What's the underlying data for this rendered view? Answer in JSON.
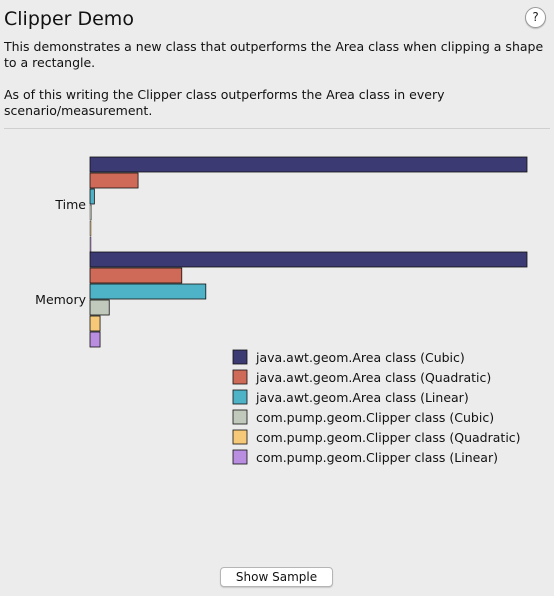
{
  "window": {
    "title": "Clipper Demo",
    "help_label": "?"
  },
  "description": {
    "para1": "This demonstrates a new class that outperforms the Area class when clipping a shape to a rectangle.",
    "para2": "As of this writing the Clipper class outperforms the Area class in every scenario/measurement."
  },
  "footer": {
    "show_sample_label": "Show Sample"
  },
  "chart_data": {
    "type": "bar",
    "orientation": "horizontal",
    "categories": [
      "Time",
      "Memory"
    ],
    "series": [
      {
        "name": "java.awt.geom.Area class (Cubic)",
        "color": "#3c3a73",
        "values": [
          100,
          100
        ]
      },
      {
        "name": "java.awt.geom.Area class (Quadratic)",
        "color": "#d06a58",
        "values": [
          11,
          21
        ]
      },
      {
        "name": "java.awt.geom.Area class (Linear)",
        "color": "#4eb3c6",
        "values": [
          1,
          26.5
        ]
      },
      {
        "name": "com.pump.geom.Clipper class (Cubic)",
        "color": "#c0c9bb",
        "values": [
          0.3,
          4.4
        ]
      },
      {
        "name": "com.pump.geom.Clipper class (Quadratic)",
        "color": "#f5c978",
        "values": [
          0.1,
          2.3
        ]
      },
      {
        "name": "com.pump.geom.Clipper class (Linear)",
        "color": "#b98ee0",
        "values": [
          0.05,
          2.3
        ]
      }
    ],
    "xlim": [
      0,
      100
    ],
    "grid": false,
    "legend": "bottom-right"
  }
}
